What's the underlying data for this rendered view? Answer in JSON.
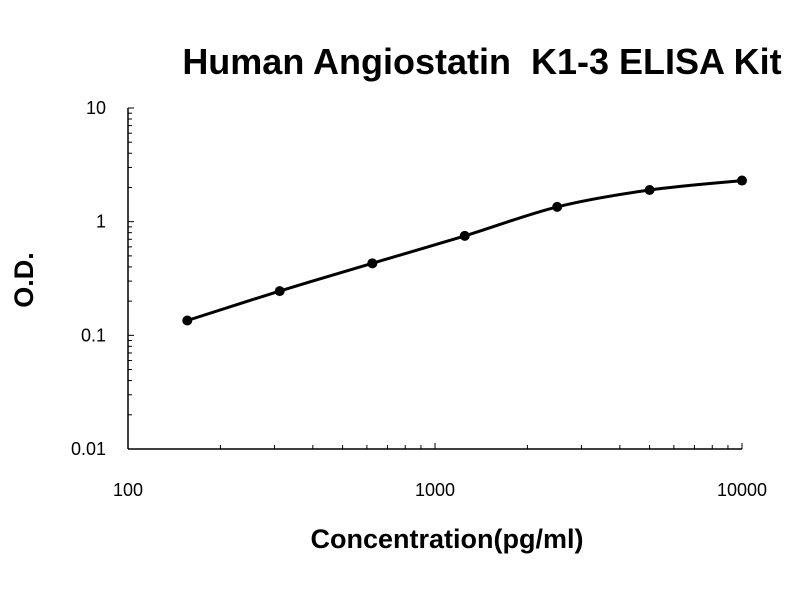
{
  "chart_data": {
    "type": "line",
    "title": "Human Angiostatin  K1-3 ELISA Kit",
    "xlabel": "Concentration(pg/ml)",
    "ylabel": "O.D.",
    "x_scale": "log",
    "y_scale": "log",
    "xlim": [
      100,
      10000
    ],
    "ylim": [
      0.01,
      10
    ],
    "x_ticks": [
      "100",
      "1000",
      "10000"
    ],
    "y_ticks": [
      "0.01",
      "0.1",
      "1",
      "10"
    ],
    "grid": false,
    "legend": "none",
    "line_color": "#000000",
    "series": [
      {
        "x": [
          156,
          312,
          625,
          1250,
          2500,
          5000,
          10000
        ],
        "y": [
          0.135,
          0.245,
          0.43,
          0.75,
          1.35,
          1.9,
          2.3
        ]
      }
    ]
  }
}
